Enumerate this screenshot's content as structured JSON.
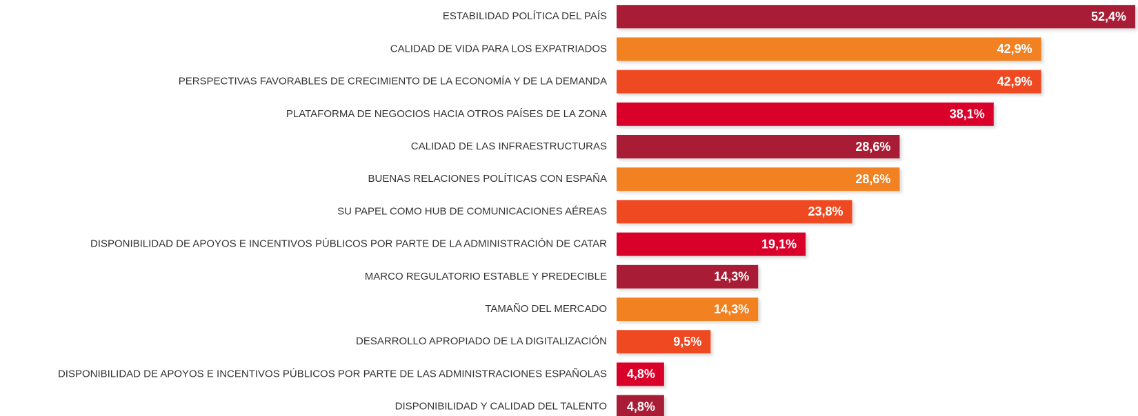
{
  "chart_data": {
    "type": "hbar",
    "categories": [
      "ESTABILIDAD POLÍTICA DEL PAÍS",
      "CALIDAD DE VIDA PARA LOS EXPATRIADOS",
      "PERSPECTIVAS FAVORABLES DE CRECIMIENTO DE LA ECONOMÍA Y DE LA DEMANDA",
      "PLATAFORMA DE NEGOCIOS HACIA OTROS PAÍSES DE LA ZONA",
      "CALIDAD DE LAS INFRAESTRUCTURAS",
      "BUENAS RELACIONES POLÍTICAS CON ESPAÑA",
      "SU PAPEL COMO HUB DE COMUNICACIONES AÉREAS",
      "DISPONIBILIDAD DE APOYOS E INCENTIVOS PÚBLICOS POR PARTE DE LA ADMINISTRACIÓN DE CATAR",
      "MARCO REGULATORIO ESTABLE Y PREDECIBLE",
      "TAMAÑO DEL MERCADO",
      "DESARROLLO APROPIADO DE LA DIGITALIZACIÓN",
      "DISPONIBILIDAD DE APOYOS E INCENTIVOS PÚBLICOS POR PARTE DE LAS ADMINISTRACIONES ESPAÑOLAS",
      "DISPONIBILIDAD Y CALIDAD DEL TALENTO"
    ],
    "values": [
      52.4,
      42.9,
      42.9,
      38.1,
      28.6,
      28.6,
      23.8,
      19.1,
      14.3,
      14.3,
      9.5,
      4.8,
      4.8
    ],
    "value_labels": [
      "52,4%",
      "42,9%",
      "42,9%",
      "38,1%",
      "28,6%",
      "28,6%",
      "23,8%",
      "19,1%",
      "14,3%",
      "14,3%",
      "9,5%",
      "4,8%",
      "4,8%"
    ],
    "colors": [
      "#a91b35",
      "#f28121",
      "#ef4a23",
      "#d9042b",
      "#a91b35",
      "#f28121",
      "#ef4a23",
      "#d9042b",
      "#a91b35",
      "#f28121",
      "#ef4a23",
      "#d9042b",
      "#a91b35"
    ]
  }
}
